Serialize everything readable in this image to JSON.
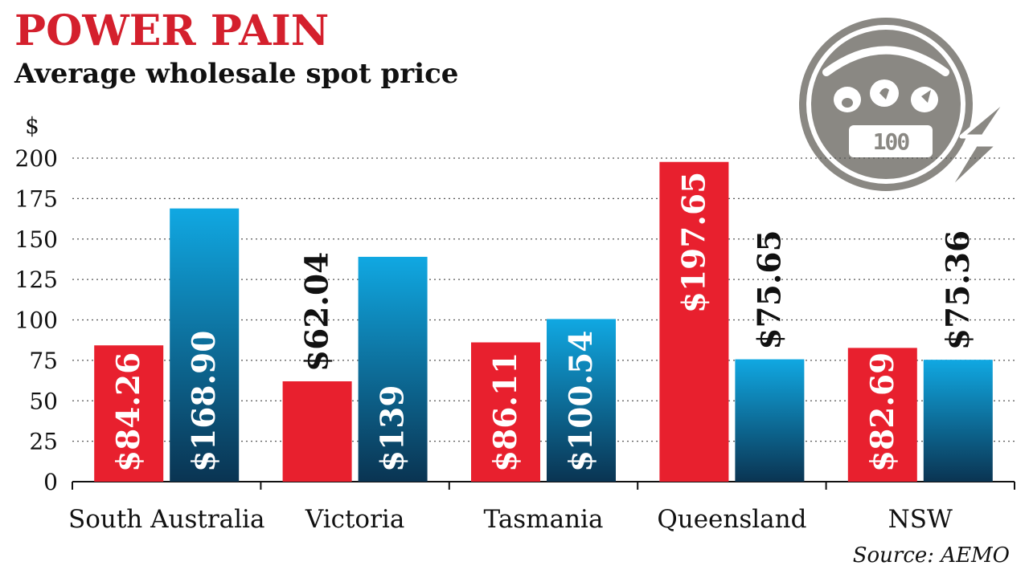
{
  "chart_data": {
    "type": "bar",
    "title": "POWER PAIN",
    "subtitle": "Average wholesale spot price",
    "ylabel": "$",
    "xlabel": "",
    "ylim": [
      0,
      200
    ],
    "yticks": [
      0,
      25,
      50,
      75,
      100,
      125,
      150,
      175,
      200
    ],
    "grid": true,
    "categories": [
      "South Australia",
      "Victoria",
      "Tasmania",
      "Queensland",
      "NSW"
    ],
    "series": [
      {
        "name": "red",
        "color": "#e8202e",
        "values": [
          84.26,
          62.04,
          86.11,
          197.65,
          82.69
        ],
        "labels": [
          "$84.26",
          "$62.04",
          "$86.11",
          "$197.65",
          "$82.69"
        ]
      },
      {
        "name": "blue",
        "color_top": "#0fa6e0",
        "color_bottom": "#0b3855",
        "values": [
          168.9,
          139,
          100.54,
          75.65,
          75.36
        ],
        "labels": [
          "$168.90",
          "$139",
          "$100.54",
          "$75.65",
          "$75.36"
        ]
      }
    ],
    "source": "Source: AEMO"
  },
  "icon": {
    "name": "electricity-meter-icon",
    "meter_text": "100",
    "color": "#8a8883"
  }
}
